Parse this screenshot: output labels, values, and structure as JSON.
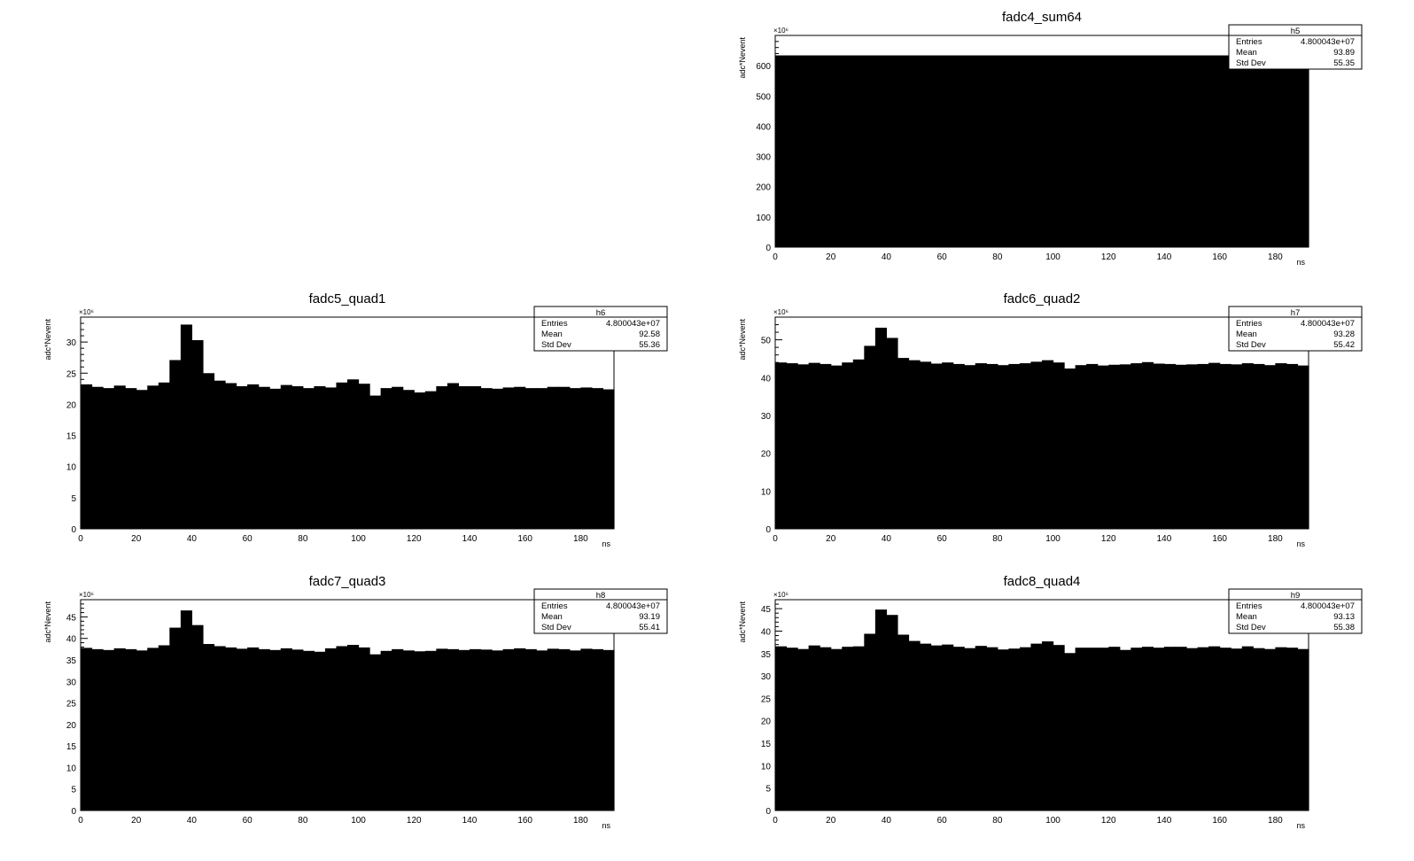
{
  "chart_data": [
    {
      "panel": "top-right",
      "type": "bar",
      "title": "fadc4_sum64",
      "xlabel": "ns",
      "ylabel": "adc*Nevent",
      "y_multiplier": "×10⁶",
      "xlim": [
        0,
        192
      ],
      "ylim": [
        0,
        700
      ],
      "xticks": [
        0,
        20,
        40,
        60,
        80,
        100,
        120,
        140,
        160,
        180
      ],
      "yticks": [
        0,
        100,
        200,
        300,
        400,
        500,
        600
      ],
      "bin_width": 4,
      "values": [
        634,
        634,
        634,
        634,
        634,
        634,
        634,
        634,
        634,
        634,
        634,
        634,
        634,
        634,
        634,
        634,
        634,
        634,
        634,
        634,
        634,
        634,
        634,
        634,
        634,
        634,
        634,
        634,
        634,
        634,
        634,
        634,
        634,
        634,
        634,
        634,
        634,
        634,
        634,
        634,
        634,
        634,
        634,
        634,
        634,
        634,
        634,
        634
      ],
      "stats": {
        "name": "h5",
        "rows": [
          [
            "Entries",
            "4.800043e+07"
          ],
          [
            "Mean",
            "93.89"
          ],
          [
            "Std Dev",
            "55.35"
          ]
        ]
      }
    },
    {
      "panel": "middle-left",
      "type": "bar",
      "title": "fadc5_quad1",
      "xlabel": "ns",
      "ylabel": "adc*Nevent",
      "y_multiplier": "×10⁶",
      "xlim": [
        0,
        192
      ],
      "ylim": [
        0,
        34
      ],
      "xticks": [
        0,
        20,
        40,
        60,
        80,
        100,
        120,
        140,
        160,
        180
      ],
      "yticks": [
        0,
        5,
        10,
        15,
        20,
        25,
        30
      ],
      "bin_width": 4,
      "values": [
        23.2,
        22.8,
        22.6,
        23.0,
        22.6,
        22.3,
        23.0,
        23.5,
        27.1,
        32.8,
        30.3,
        25.0,
        23.8,
        23.4,
        22.9,
        23.2,
        22.8,
        22.5,
        23.1,
        22.9,
        22.6,
        22.9,
        22.7,
        23.5,
        24.0,
        23.3,
        21.4,
        22.6,
        22.8,
        22.3,
        21.9,
        22.1,
        22.9,
        23.4,
        22.9,
        22.9,
        22.6,
        22.5,
        22.7,
        22.8,
        22.6,
        22.6,
        22.8,
        22.8,
        22.6,
        22.7,
        22.6,
        22.4
      ],
      "stats": {
        "name": "h6",
        "rows": [
          [
            "Entries",
            "4.800043e+07"
          ],
          [
            "Mean",
            "92.58"
          ],
          [
            "Std Dev",
            "55.36"
          ]
        ]
      }
    },
    {
      "panel": "middle-right",
      "type": "bar",
      "title": "fadc6_quad2",
      "xlabel": "ns",
      "ylabel": "adc*Nevent",
      "y_multiplier": "×10⁶",
      "xlim": [
        0,
        192
      ],
      "ylim": [
        0,
        56
      ],
      "xticks": [
        0,
        20,
        40,
        60,
        80,
        100,
        120,
        140,
        160,
        180
      ],
      "yticks": [
        0,
        10,
        20,
        30,
        40,
        50
      ],
      "bin_width": 4,
      "values": [
        44.0,
        43.8,
        43.5,
        43.9,
        43.6,
        43.2,
        44.0,
        44.8,
        48.4,
        53.2,
        50.5,
        45.2,
        44.6,
        44.2,
        43.7,
        44.0,
        43.6,
        43.3,
        43.8,
        43.6,
        43.3,
        43.6,
        43.8,
        44.2,
        44.6,
        44.0,
        42.4,
        43.3,
        43.6,
        43.2,
        43.4,
        43.5,
        43.8,
        44.1,
        43.7,
        43.6,
        43.4,
        43.5,
        43.6,
        43.9,
        43.6,
        43.5,
        43.8,
        43.6,
        43.3,
        43.8,
        43.6,
        43.2
      ],
      "stats": {
        "name": "h7",
        "rows": [
          [
            "Entries",
            "4.800043e+07"
          ],
          [
            "Mean",
            "93.28"
          ],
          [
            "Std Dev",
            "55.42"
          ]
        ]
      }
    },
    {
      "panel": "bottom-left",
      "type": "bar",
      "title": "fadc7_quad3",
      "xlabel": "ns",
      "ylabel": "adc*Nevent",
      "y_multiplier": "×10⁶",
      "xlim": [
        0,
        192
      ],
      "ylim": [
        0,
        49
      ],
      "xticks": [
        0,
        20,
        40,
        60,
        80,
        100,
        120,
        140,
        160,
        180
      ],
      "yticks": [
        0,
        5,
        10,
        15,
        20,
        25,
        30,
        35,
        40,
        45
      ],
      "bin_width": 4,
      "values": [
        37.8,
        37.5,
        37.3,
        37.7,
        37.5,
        37.2,
        37.8,
        38.4,
        42.5,
        46.5,
        43.1,
        38.7,
        38.2,
        37.9,
        37.6,
        37.9,
        37.5,
        37.3,
        37.7,
        37.4,
        37.1,
        36.9,
        37.7,
        38.2,
        38.5,
        37.9,
        36.3,
        37.1,
        37.5,
        37.2,
        37.0,
        37.1,
        37.6,
        37.5,
        37.3,
        37.5,
        37.4,
        37.2,
        37.5,
        37.7,
        37.5,
        37.2,
        37.6,
        37.5,
        37.2,
        37.6,
        37.5,
        37.3
      ],
      "stats": {
        "name": "h8",
        "rows": [
          [
            "Entries",
            "4.800043e+07"
          ],
          [
            "Mean",
            "93.19"
          ],
          [
            "Std Dev",
            "55.41"
          ]
        ]
      }
    },
    {
      "panel": "bottom-right",
      "type": "bar",
      "title": "fadc8_quad4",
      "xlabel": "ns",
      "ylabel": "adc*Nevent",
      "y_multiplier": "×10⁶",
      "xlim": [
        0,
        192
      ],
      "ylim": [
        0,
        47
      ],
      "xticks": [
        0,
        20,
        40,
        60,
        80,
        100,
        120,
        140,
        160,
        180
      ],
      "yticks": [
        0,
        5,
        10,
        15,
        20,
        25,
        30,
        35,
        40,
        45
      ],
      "bin_width": 4,
      "values": [
        36.6,
        36.3,
        36.0,
        36.8,
        36.4,
        36.0,
        36.5,
        36.6,
        39.4,
        44.8,
        43.6,
        39.2,
        37.8,
        37.2,
        36.8,
        37.0,
        36.5,
        36.2,
        36.7,
        36.4,
        35.9,
        36.1,
        36.4,
        37.2,
        37.7,
        36.9,
        35.1,
        36.3,
        36.3,
        36.3,
        36.5,
        35.8,
        36.3,
        36.5,
        36.3,
        36.5,
        36.5,
        36.2,
        36.4,
        36.6,
        36.3,
        36.1,
        36.6,
        36.2,
        36.0,
        36.4,
        36.3,
        36.0
      ],
      "stats": {
        "name": "h9",
        "rows": [
          [
            "Entries",
            "4.800043e+07"
          ],
          [
            "Mean",
            "93.13"
          ],
          [
            "Std Dev",
            "55.38"
          ]
        ]
      }
    }
  ]
}
